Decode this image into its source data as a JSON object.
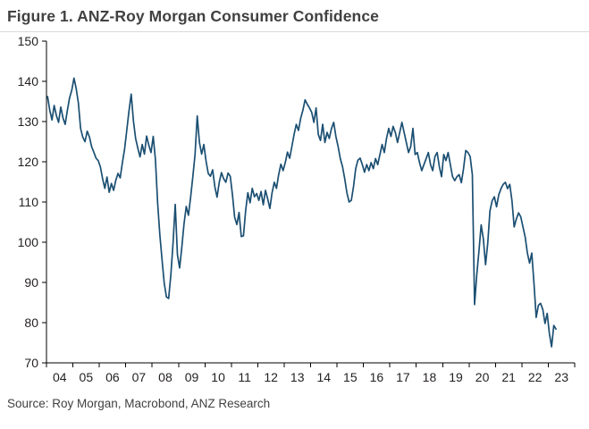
{
  "title": "Figure 1. ANZ-Roy Morgan Consumer Confidence",
  "source": "Source: Roy Morgan, Macrobond, ANZ Research",
  "colors": {
    "line": "#1b4f72",
    "axis": "#000000",
    "title_text": "#414042",
    "tick_text": "#231f20",
    "source_text": "#414042",
    "header_rule": "#d9dadb"
  },
  "chart_data": {
    "type": "line",
    "title": "Figure 1. ANZ-Roy Morgan Consumer Confidence",
    "xlabel": "",
    "ylabel": "",
    "ylim": [
      70,
      150
    ],
    "yticks": [
      70,
      80,
      90,
      100,
      110,
      120,
      130,
      140,
      150
    ],
    "xtick_labels": [
      "04",
      "05",
      "06",
      "07",
      "08",
      "09",
      "10",
      "11",
      "12",
      "13",
      "14",
      "15",
      "16",
      "17",
      "18",
      "19",
      "20",
      "21",
      "22",
      "23"
    ],
    "x_start_year": 2004,
    "x_frequency": "monthly",
    "grid": false,
    "legend": "none",
    "series": [
      {
        "name": "ANZ-Roy Morgan Consumer Confidence",
        "values": [
          136.2,
          132.8,
          130.4,
          134.0,
          131.5,
          129.8,
          133.6,
          130.9,
          129.3,
          132.8,
          135.9,
          137.8,
          140.8,
          138.2,
          134.6,
          128.3,
          126.1,
          125.0,
          127.6,
          126.2,
          123.8,
          122.4,
          120.9,
          120.3,
          118.7,
          115.8,
          113.4,
          116.2,
          112.4,
          114.6,
          112.9,
          115.4,
          117.1,
          116.0,
          119.8,
          123.2,
          127.9,
          132.7,
          136.8,
          130.2,
          125.8,
          123.4,
          121.2,
          124.3,
          121.9,
          126.4,
          124.1,
          122.3,
          126.3,
          120.6,
          109.8,
          101.9,
          95.7,
          89.8,
          86.4,
          86.0,
          91.8,
          99.7,
          109.4,
          96.9,
          93.6,
          98.8,
          104.6,
          108.9,
          106.7,
          111.2,
          116.3,
          121.8,
          131.4,
          124.8,
          121.9,
          124.3,
          120.2,
          117.1,
          116.4,
          118.0,
          113.8,
          111.2,
          114.9,
          117.3,
          115.8,
          114.9,
          117.2,
          116.4,
          111.8,
          106.2,
          104.4,
          107.4,
          101.4,
          101.6,
          107.9,
          112.3,
          109.8,
          113.4,
          111.3,
          112.1,
          110.4,
          112.6,
          109.3,
          112.9,
          110.8,
          108.4,
          112.3,
          114.9,
          113.4,
          116.8,
          119.4,
          117.8,
          119.8,
          122.4,
          120.9,
          123.8,
          126.8,
          129.3,
          127.8,
          130.8,
          132.8,
          135.4,
          134.3,
          133.4,
          132.3,
          129.8,
          133.4,
          126.8,
          125.3,
          129.3,
          124.8,
          127.3,
          125.8,
          128.3,
          129.8,
          126.3,
          123.8,
          120.8,
          118.8,
          115.8,
          112.3,
          110.0,
          110.4,
          113.8,
          118.3,
          120.4,
          120.9,
          119.3,
          117.4,
          119.3,
          117.8,
          119.8,
          118.3,
          120.8,
          119.3,
          121.8,
          124.3,
          122.3,
          125.8,
          128.3,
          126.3,
          128.8,
          127.3,
          124.8,
          127.3,
          129.8,
          127.3,
          124.8,
          122.3,
          123.8,
          128.3,
          121.8,
          122.3,
          119.8,
          117.8,
          119.3,
          120.8,
          122.3,
          119.3,
          117.8,
          121.3,
          122.3,
          118.8,
          116.3,
          121.8,
          120.3,
          122.3,
          119.3,
          116.3,
          115.3,
          116.3,
          116.8,
          114.8,
          118.3,
          122.8,
          122.3,
          121.3,
          116.8,
          84.5,
          91.9,
          97.8,
          104.3,
          100.8,
          94.4,
          99.8,
          107.8,
          110.3,
          111.3,
          108.8,
          111.8,
          113.3,
          114.4,
          114.9,
          113.3,
          114.4,
          110.3,
          103.8,
          105.8,
          107.3,
          106.3,
          103.8,
          101.3,
          97.3,
          94.8,
          97.3,
          89.8,
          81.3,
          84.3,
          84.8,
          83.3,
          79.8,
          82.3,
          77.3,
          74.0,
          79.3,
          78.4
        ]
      }
    ]
  }
}
